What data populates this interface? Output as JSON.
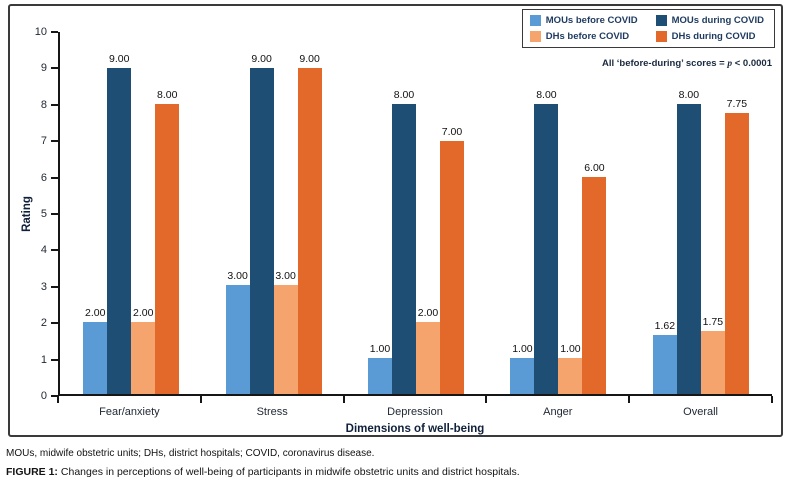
{
  "chart_data": {
    "type": "bar",
    "categories": [
      "Fear/anxiety",
      "Stress",
      "Depression",
      "Anger",
      "Overall"
    ],
    "series": [
      {
        "name": "MOUs before COVID",
        "color": "#5B9BD5",
        "values": [
          2.0,
          3.0,
          1.0,
          1.0,
          1.62
        ]
      },
      {
        "name": "MOUs during COVID",
        "color": "#1F4E74",
        "values": [
          9.0,
          9.0,
          8.0,
          8.0,
          8.0
        ]
      },
      {
        "name": "DHs before COVID",
        "color": "#F4A46C",
        "values": [
          2.0,
          3.0,
          2.0,
          1.0,
          1.75
        ]
      },
      {
        "name": "DHs during COVID",
        "color": "#E2692A",
        "values": [
          8.0,
          9.0,
          7.0,
          6.0,
          7.75
        ]
      }
    ],
    "title": "",
    "xlabel": "Dimensions of well-being",
    "ylabel": "Rating",
    "ylim": [
      0,
      10
    ],
    "yticks": [
      0,
      1,
      2,
      3,
      4,
      5,
      6,
      7,
      8,
      9,
      10
    ],
    "value_label_decimals": 2,
    "grid": false,
    "legend_position": "top-right"
  },
  "annotation": {
    "prefix": "All ‘before-during’ scores = ",
    "p": "p",
    "suffix": " < 0.0001"
  },
  "footer": {
    "abbreviations": "MOUs, midwife obstetric units; DHs, district hospitals; COVID, coronavirus disease.",
    "caption_label": "FIGURE 1:",
    "caption_text": "Changes in perceptions of well-being of participants in midwife obstetric units and district hospitals."
  }
}
